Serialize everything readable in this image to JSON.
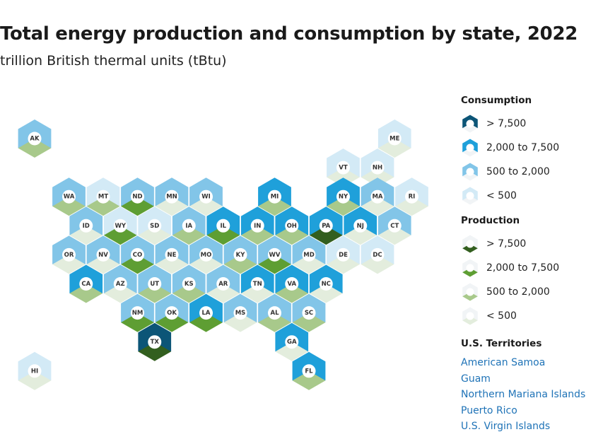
{
  "header": {
    "title": "Total energy production and consumption by state, 2022",
    "subtitle": "trillion British thermal units (tBtu)"
  },
  "colors": {
    "consumption": [
      "#d3eaf6",
      "#82c5e8",
      "#1fa0da",
      "#0c5577"
    ],
    "production": [
      "#e3eddd",
      "#a8c98b",
      "#5e9e33",
      "#335f1f"
    ],
    "label_circle": "#ffffff",
    "label_text": "#333333",
    "territory_link": "#1f73b7"
  },
  "map": {
    "states": [
      {
        "code": "AK",
        "col": 1,
        "row": 0,
        "c": 1,
        "p": 1
      },
      {
        "code": "ME",
        "col": 11.5,
        "row": 0,
        "c": 0,
        "p": 0
      },
      {
        "code": "VT",
        "col": 10,
        "row": 1,
        "c": 0,
        "p": 0
      },
      {
        "code": "NH",
        "col": 11,
        "row": 1,
        "c": 0,
        "p": 0
      },
      {
        "code": "WA",
        "col": 2,
        "row": 2,
        "c": 1,
        "p": 1
      },
      {
        "code": "MT",
        "col": 3,
        "row": 2,
        "c": 0,
        "p": 1
      },
      {
        "code": "ND",
        "col": 4,
        "row": 2,
        "c": 1,
        "p": 2
      },
      {
        "code": "MN",
        "col": 5,
        "row": 2,
        "c": 1,
        "p": 0
      },
      {
        "code": "WI",
        "col": 6,
        "row": 2,
        "c": 1,
        "p": 0
      },
      {
        "code": "MI",
        "col": 8,
        "row": 2,
        "c": 2,
        "p": 1
      },
      {
        "code": "NY",
        "col": 10,
        "row": 2,
        "c": 2,
        "p": 1
      },
      {
        "code": "MA",
        "col": 11,
        "row": 2,
        "c": 1,
        "p": 0
      },
      {
        "code": "RI",
        "col": 12,
        "row": 2,
        "c": 0,
        "p": 0
      },
      {
        "code": "ID",
        "col": 2.5,
        "row": 3,
        "c": 1,
        "p": 0
      },
      {
        "code": "WY",
        "col": 3.5,
        "row": 3,
        "c": 0,
        "p": 2
      },
      {
        "code": "SD",
        "col": 4.5,
        "row": 3,
        "c": 0,
        "p": 0
      },
      {
        "code": "IA",
        "col": 5.5,
        "row": 3,
        "c": 1,
        "p": 1
      },
      {
        "code": "IL",
        "col": 6.5,
        "row": 3,
        "c": 2,
        "p": 2
      },
      {
        "code": "IN",
        "col": 7.5,
        "row": 3,
        "c": 2,
        "p": 1
      },
      {
        "code": "OH",
        "col": 8.5,
        "row": 3,
        "c": 2,
        "p": 1
      },
      {
        "code": "PA",
        "col": 9.5,
        "row": 3,
        "c": 2,
        "p": 3
      },
      {
        "code": "NJ",
        "col": 10.5,
        "row": 3,
        "c": 2,
        "p": 0
      },
      {
        "code": "CT",
        "col": 11.5,
        "row": 3,
        "c": 1,
        "p": 0
      },
      {
        "code": "OR",
        "col": 2,
        "row": 4,
        "c": 1,
        "p": 0
      },
      {
        "code": "NV",
        "col": 3,
        "row": 4,
        "c": 1,
        "p": 0
      },
      {
        "code": "CO",
        "col": 4,
        "row": 4,
        "c": 1,
        "p": 2
      },
      {
        "code": "NE",
        "col": 5,
        "row": 4,
        "c": 1,
        "p": 0
      },
      {
        "code": "MO",
        "col": 6,
        "row": 4,
        "c": 1,
        "p": 0
      },
      {
        "code": "KY",
        "col": 7,
        "row": 4,
        "c": 1,
        "p": 1
      },
      {
        "code": "WV",
        "col": 8,
        "row": 4,
        "c": 1,
        "p": 2
      },
      {
        "code": "MD",
        "col": 9,
        "row": 4,
        "c": 1,
        "p": 0
      },
      {
        "code": "DE",
        "col": 10,
        "row": 4,
        "c": 0,
        "p": 0
      },
      {
        "code": "DC",
        "col": 11,
        "row": 4,
        "c": 0,
        "p": 0
      },
      {
        "code": "CA",
        "col": 2.5,
        "row": 5,
        "c": 2,
        "p": 1
      },
      {
        "code": "AZ",
        "col": 3.5,
        "row": 5,
        "c": 1,
        "p": 0
      },
      {
        "code": "UT",
        "col": 4.5,
        "row": 5,
        "c": 1,
        "p": 1
      },
      {
        "code": "KS",
        "col": 5.5,
        "row": 5,
        "c": 1,
        "p": 1
      },
      {
        "code": "AR",
        "col": 6.5,
        "row": 5,
        "c": 1,
        "p": 0
      },
      {
        "code": "TN",
        "col": 7.5,
        "row": 5,
        "c": 2,
        "p": 0
      },
      {
        "code": "VA",
        "col": 8.5,
        "row": 5,
        "c": 2,
        "p": 1
      },
      {
        "code": "NC",
        "col": 9.5,
        "row": 5,
        "c": 2,
        "p": 0
      },
      {
        "code": "NM",
        "col": 4,
        "row": 6,
        "c": 1,
        "p": 2
      },
      {
        "code": "OK",
        "col": 5,
        "row": 6,
        "c": 1,
        "p": 2
      },
      {
        "code": "LA",
        "col": 6,
        "row": 6,
        "c": 2,
        "p": 2
      },
      {
        "code": "MS",
        "col": 7,
        "row": 6,
        "c": 1,
        "p": 0
      },
      {
        "code": "AL",
        "col": 8,
        "row": 6,
        "c": 1,
        "p": 1
      },
      {
        "code": "SC",
        "col": 9,
        "row": 6,
        "c": 1,
        "p": 1
      },
      {
        "code": "TX",
        "col": 4.5,
        "row": 7,
        "c": 3,
        "p": 3
      },
      {
        "code": "GA",
        "col": 8.5,
        "row": 7,
        "c": 2,
        "p": 0
      },
      {
        "code": "HI",
        "col": 1,
        "row": 8,
        "c": 0,
        "p": 0
      },
      {
        "code": "FL",
        "col": 9,
        "row": 8,
        "c": 2,
        "p": 1
      }
    ]
  },
  "legend": {
    "consumption": {
      "title": "Consumption",
      "items": [
        {
          "label": "> 7,500",
          "level": 3
        },
        {
          "label": "2,000 to 7,500",
          "level": 2
        },
        {
          "label": "500 to 2,000",
          "level": 1
        },
        {
          "label": "< 500",
          "level": 0
        }
      ]
    },
    "production": {
      "title": "Production",
      "items": [
        {
          "label": "> 7,500",
          "level": 3
        },
        {
          "label": "2,000 to 7,500",
          "level": 2
        },
        {
          "label": "500 to 2,000",
          "level": 1
        },
        {
          "label": "< 500",
          "level": 0
        }
      ]
    }
  },
  "territories": {
    "title": "U.S. Territories",
    "links": [
      "American Samoa",
      "Guam",
      "Northern Mariana Islands",
      "Puerto Rico",
      "U.S. Virgin Islands"
    ]
  }
}
